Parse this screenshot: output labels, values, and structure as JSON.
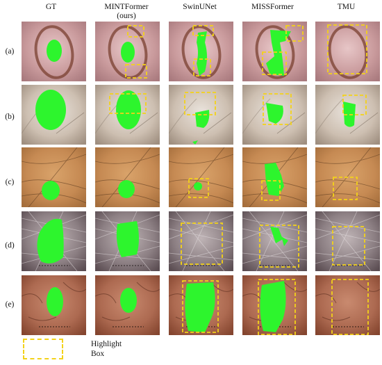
{
  "columns": [
    {
      "label": "GT"
    },
    {
      "label": "MINTFormer\n(ours)"
    },
    {
      "label": "SwinUNet"
    },
    {
      "label": "MISSFormer"
    },
    {
      "label": "TMU"
    }
  ],
  "rows": [
    {
      "label": "(a)"
    },
    {
      "label": "(b)"
    },
    {
      "label": "(c)"
    },
    {
      "label": "(d)"
    },
    {
      "label": "(e)"
    }
  ],
  "legend": {
    "label": "Highlight\nBox"
  },
  "colors": {
    "mask": "#2df52d",
    "highlight": "#f3d21a"
  }
}
